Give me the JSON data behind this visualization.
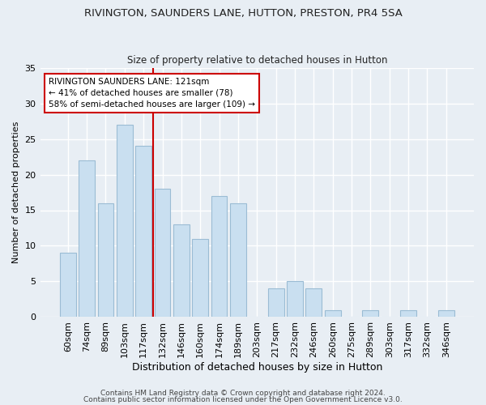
{
  "title": "RIVINGTON, SAUNDERS LANE, HUTTON, PRESTON, PR4 5SA",
  "subtitle": "Size of property relative to detached houses in Hutton",
  "xlabel": "Distribution of detached houses by size in Hutton",
  "ylabel": "Number of detached properties",
  "footer_line1": "Contains HM Land Registry data © Crown copyright and database right 2024.",
  "footer_line2": "Contains public sector information licensed under the Open Government Licence v3.0.",
  "bar_labels": [
    "60sqm",
    "74sqm",
    "89sqm",
    "103sqm",
    "117sqm",
    "132sqm",
    "146sqm",
    "160sqm",
    "174sqm",
    "189sqm",
    "203sqm",
    "217sqm",
    "232sqm",
    "246sqm",
    "260sqm",
    "275sqm",
    "289sqm",
    "303sqm",
    "317sqm",
    "332sqm",
    "346sqm"
  ],
  "bar_values": [
    9,
    22,
    16,
    27,
    24,
    18,
    13,
    11,
    17,
    16,
    0,
    4,
    5,
    4,
    1,
    0,
    1,
    0,
    1,
    0,
    1
  ],
  "bar_color": "#c9dff0",
  "bar_edge_color": "#9bbcd4",
  "highlight_line_color": "#cc0000",
  "highlight_line_index": 4,
  "ylim": [
    0,
    35
  ],
  "yticks": [
    0,
    5,
    10,
    15,
    20,
    25,
    30,
    35
  ],
  "annotation_text": "RIVINGTON SAUNDERS LANE: 121sqm\n← 41% of detached houses are smaller (78)\n58% of semi-detached houses are larger (109) →",
  "annotation_box_facecolor": "#ffffff",
  "annotation_box_edgecolor": "#cc0000",
  "bg_color": "#e8eef4",
  "plot_bg_color": "#e8eef4",
  "grid_color": "#ffffff",
  "title_fontsize": 9.5,
  "subtitle_fontsize": 8.5,
  "xlabel_fontsize": 9,
  "ylabel_fontsize": 8,
  "tick_fontsize": 8,
  "annotation_fontsize": 7.5,
  "footer_fontsize": 6.5
}
